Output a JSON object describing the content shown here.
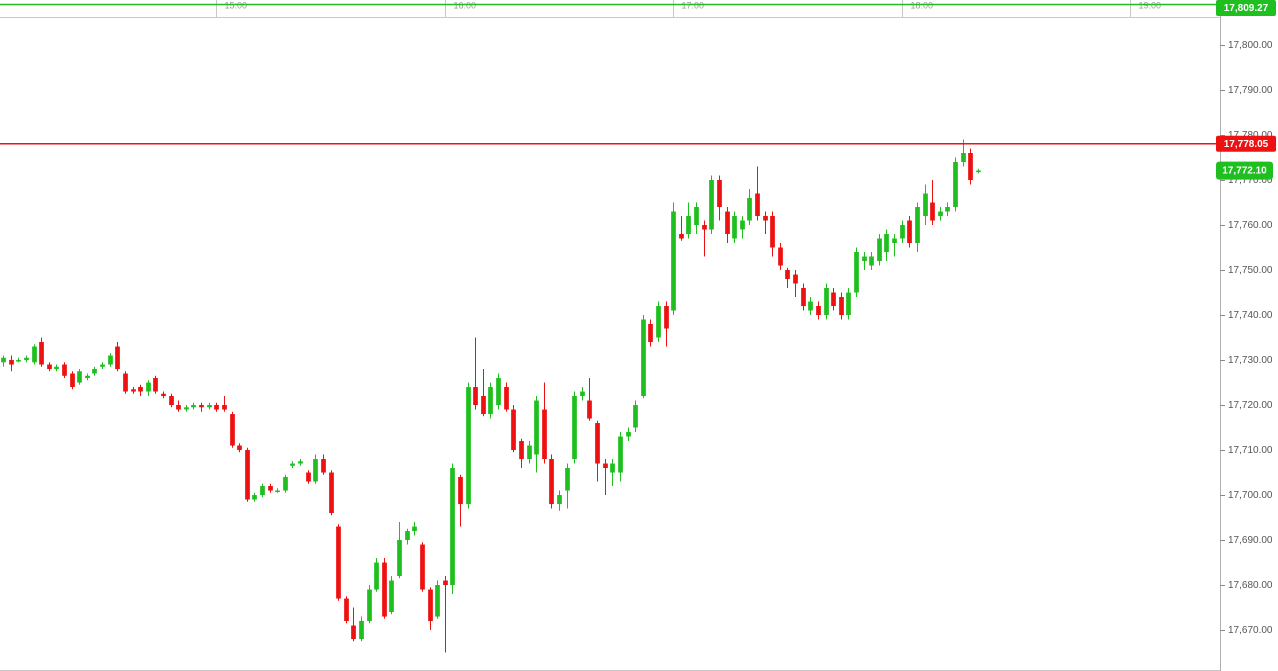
{
  "chart_data": {
    "type": "candlestick",
    "up_color": "#1fbf1f",
    "down_color": "#ee1111",
    "xlim": [
      -0.4,
      159.8
    ],
    "xticks": [
      {
        "value": 28,
        "label": "15:00"
      },
      {
        "value": 58,
        "label": "16:00"
      },
      {
        "value": 88,
        "label": "17:00"
      },
      {
        "value": 118,
        "label": "18:00"
      },
      {
        "value": 148,
        "label": "19:00"
      }
    ],
    "ylim": [
      17660.9,
      17810
    ],
    "yticks": [
      {
        "value": 17670,
        "label": "17,670.00"
      },
      {
        "value": 17680,
        "label": "17,680.00"
      },
      {
        "value": 17690,
        "label": "17,690.00"
      },
      {
        "value": 17700,
        "label": "17,700.00"
      },
      {
        "value": 17710,
        "label": "17,710.00"
      },
      {
        "value": 17720,
        "label": "17,720.00"
      },
      {
        "value": 17730,
        "label": "17,730.00"
      },
      {
        "value": 17740,
        "label": "17,740.00"
      },
      {
        "value": 17750,
        "label": "17,750.00"
      },
      {
        "value": 17760,
        "label": "17,760.00"
      },
      {
        "value": 17770,
        "label": "17,770.00"
      },
      {
        "value": 17780,
        "label": "17,780.00"
      },
      {
        "value": 17790,
        "label": "17,790.00"
      },
      {
        "value": 17800,
        "label": "17,800.00"
      }
    ],
    "price_lines": [
      {
        "value": 17809.27,
        "label": "17,809.27",
        "color": "#1fbf1f"
      },
      {
        "value": 17778.05,
        "label": "17,778.05",
        "color": "#ee1111"
      }
    ],
    "last_price": {
      "value": 17772.1,
      "label": "17,772.10",
      "color": "#1fbf1f"
    },
    "open": [
      17729.5,
      17730,
      17730,
      17730,
      17729.5,
      17734,
      17729,
      17728,
      17729,
      17727,
      17725,
      17726,
      17727,
      17728.5,
      17729,
      17733,
      17727,
      17723.5,
      17724,
      17723,
      17726,
      17722.5,
      17722,
      17720,
      17719,
      17719.5,
      17720,
      17719.5,
      17720,
      17720,
      17718,
      17711,
      17710,
      17699,
      17700,
      17702,
      17701,
      17701,
      17706.5,
      17707,
      17705,
      17703,
      17708,
      17705,
      17693,
      17677,
      17671,
      17668,
      17672,
      17679,
      17685,
      17674,
      17682,
      17690,
      17692,
      17689,
      17679,
      17673,
      17681,
      17680,
      17704,
      17698,
      17724,
      17722,
      17718,
      17720,
      17724,
      17719,
      17712,
      17708,
      17709,
      17719,
      17708,
      17698,
      17701,
      17708,
      17722,
      17721,
      17716,
      17707,
      17705,
      17705,
      17713,
      17715,
      17722,
      17738,
      17735,
      17742,
      17741,
      17758,
      17758,
      17760,
      17760,
      17759,
      17770,
      17763,
      17757,
      17759,
      17761,
      17767,
      17762,
      17762,
      17755,
      17750,
      17749,
      17746,
      17741,
      17742,
      17740,
      17745,
      17744,
      17740,
      17745,
      17752,
      17751,
      17752,
      17754,
      17756,
      17757,
      17761,
      17756,
      17762,
      17765,
      17762,
      17763,
      17764,
      17774,
      17776,
      17772
    ],
    "high": [
      17731,
      17731,
      17730.5,
      17731,
      17733.5,
      17735,
      17729.5,
      17729,
      17729.5,
      17727.5,
      17728,
      17727,
      17728.5,
      17729.5,
      17731.5,
      17734,
      17727.5,
      17724,
      17724.5,
      17725.5,
      17726.5,
      17723,
      17722.5,
      17721,
      17720,
      17720.5,
      17720.5,
      17720.5,
      17720.5,
      17722,
      17718.5,
      17711.5,
      17710.5,
      17700.5,
      17702.5,
      17702.5,
      17701.5,
      17704.5,
      17707.5,
      17708,
      17705.5,
      17709,
      17709,
      17705.5,
      17693.5,
      17677.5,
      17675,
      17673,
      17680,
      17686,
      17686,
      17682,
      17694,
      17692.5,
      17694,
      17689.5,
      17679.5,
      17681,
      17682,
      17707,
      17704.5,
      17725,
      17735,
      17728,
      17725,
      17727,
      17725,
      17720,
      17712.5,
      17712,
      17722,
      17725,
      17709,
      17701,
      17707,
      17723,
      17724,
      17726,
      17716.5,
      17708,
      17708,
      17714,
      17715,
      17721,
      17740,
      17739,
      17743,
      17743,
      17765,
      17762,
      17765,
      17765,
      17761,
      17771,
      17771,
      17764,
      17763,
      17762,
      17768,
      17773,
      17763,
      17763,
      17756,
      17750.5,
      17750,
      17747,
      17744,
      17743,
      17747,
      17746,
      17745,
      17746,
      17755,
      17754,
      17754,
      17758,
      17759,
      17758,
      17761,
      17762,
      17765,
      17769,
      17770,
      17764,
      17765,
      17775,
      17779,
      17777,
      17772.5
    ],
    "low": [
      17728.5,
      17727.5,
      17729.5,
      17729.5,
      17729,
      17728.5,
      17727.5,
      17727.5,
      17726,
      17723.5,
      17724.5,
      17725.5,
      17726.5,
      17728,
      17728.5,
      17727.5,
      17722.5,
      17722.5,
      17722,
      17722,
      17722.5,
      17721.5,
      17719.5,
      17718.5,
      17718.5,
      17719,
      17718.5,
      17719,
      17718.5,
      17718.5,
      17710.5,
      17709.5,
      17698.5,
      17698.5,
      17699.5,
      17700.5,
      17700.5,
      17700.5,
      17706,
      17706.5,
      17702.5,
      17702.5,
      17704.5,
      17695.5,
      17676.5,
      17671.5,
      17667.5,
      17667.5,
      17671.5,
      17678.5,
      17672.5,
      17673.5,
      17681.5,
      17689,
      17691,
      17678.5,
      17670,
      17672.5,
      17665,
      17678,
      17693,
      17697,
      17719,
      17717.5,
      17717,
      17719,
      17718.5,
      17709.5,
      17706,
      17707,
      17705,
      17707,
      17697,
      17696.5,
      17697,
      17707,
      17721,
      17716.5,
      17703,
      17700,
      17702,
      17703,
      17712,
      17714,
      17721.5,
      17733,
      17734,
      17733,
      17740,
      17756.5,
      17757,
      17758,
      17753,
      17758,
      17761,
      17756,
      17756,
      17757,
      17760,
      17761,
      17758,
      17753,
      17750,
      17746,
      17744,
      17741,
      17740,
      17739,
      17739,
      17741,
      17739,
      17739,
      17744,
      17750,
      17750,
      17751,
      17752,
      17753,
      17756,
      17755,
      17754,
      17760,
      17760,
      17761,
      17762,
      17763,
      17773,
      17769,
      17771.5
    ],
    "close": [
      17730.5,
      17729,
      17730,
      17730.5,
      17733,
      17729,
      17728,
      17728.5,
      17726.5,
      17724,
      17727.5,
      17726.5,
      17728,
      17729,
      17731,
      17728,
      17723,
      17723,
      17723,
      17725,
      17723,
      17722,
      17720,
      17719,
      17719.5,
      17720,
      17719.5,
      17720,
      17719,
      17719,
      17711,
      17710,
      17699,
      17700,
      17702,
      17701,
      17701,
      17704,
      17707,
      17707.5,
      17703,
      17708,
      17705,
      17696,
      17677,
      17672,
      17668,
      17672,
      17679,
      17685,
      17673,
      17681,
      17690,
      17692,
      17693,
      17679,
      17672,
      17680,
      17680,
      17706,
      17698,
      17724,
      17720,
      17718,
      17724,
      17726,
      17719,
      17710,
      17708,
      17711,
      17721,
      17708,
      17698,
      17700,
      17706,
      17722,
      17723,
      17717,
      17707,
      17706,
      17707,
      17713,
      17714,
      17720,
      17739,
      17734,
      17742,
      17737,
      17763,
      17757,
      17762,
      17764,
      17759,
      17770,
      17764,
      17758,
      17762,
      17761,
      17766,
      17762,
      17761,
      17755,
      17751,
      17748,
      17747,
      17742,
      17743,
      17740,
      17746,
      17742,
      17740,
      17745,
      17754,
      17753,
      17753,
      17757,
      17758,
      17757,
      17760,
      17756,
      17764,
      17767,
      17761,
      17763,
      17764,
      17774,
      17776,
      17770,
      17772.1
    ]
  }
}
